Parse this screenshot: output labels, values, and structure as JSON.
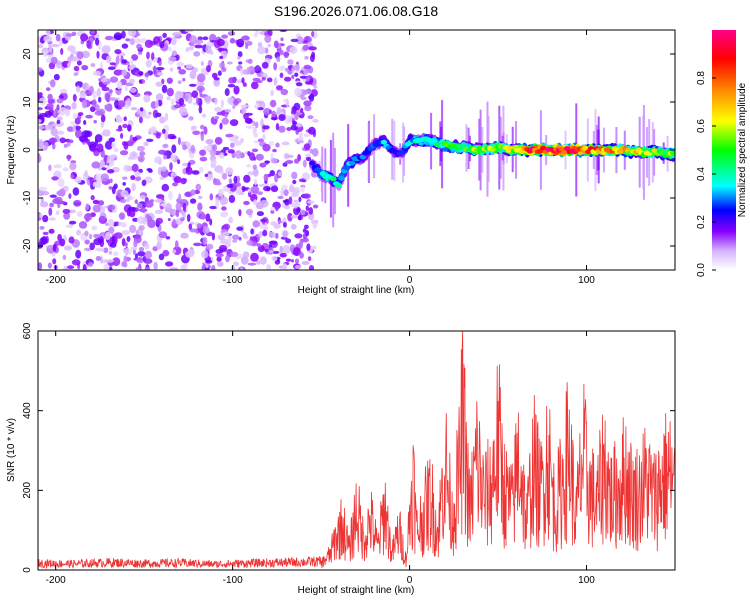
{
  "chart_data": [
    {
      "type": "heatmap",
      "title": "S196.2026.071.06.08.G18",
      "xlabel": "Height of straight line (km)",
      "ylabel": "Frequency (Hz)",
      "xlim": [
        -210,
        150
      ],
      "ylim": [
        -25,
        25
      ],
      "x_ticks": [
        -200,
        -100,
        0,
        100
      ],
      "y_ticks": [
        -20,
        -10,
        0,
        10,
        20
      ],
      "colorbar": {
        "label": "Normalized spectral amplitude",
        "range": [
          0,
          1
        ],
        "ticks": [
          0.0,
          0.2,
          0.4,
          0.6,
          0.8
        ],
        "tick_labels": [
          "0.0",
          "0.2",
          "0.4",
          "0.6",
          "0.8"
        ],
        "colormap": "rainbow (white, violet, blue, cyan, green, yellow, orange, red, pink)"
      },
      "regions": [
        {
          "x_range": [
            -210,
            -53
          ],
          "description": "noise",
          "peak_frequency_hz": null,
          "max_amplitude": 0.15
        },
        {
          "x_range": [
            -53,
            150
          ],
          "description": "signal",
          "max_amplitude": 0.95
        }
      ],
      "signal_track": {
        "x": [
          -55,
          -50,
          -45,
          -40,
          -35,
          -30,
          -25,
          -20,
          -15,
          -10,
          -5,
          0,
          10,
          20,
          30,
          40,
          50,
          60,
          70,
          80,
          90,
          100,
          110,
          120,
          130,
          140,
          150
        ],
        "frequency": [
          -3,
          -5,
          -6,
          -7,
          -3,
          -2,
          -1,
          1,
          2,
          0,
          -1,
          2,
          2,
          1,
          0.5,
          0,
          0.5,
          0,
          0,
          0,
          0,
          0,
          0,
          0,
          -0.5,
          -0.5,
          -1
        ],
        "amplitude": [
          0.2,
          0.35,
          0.4,
          0.35,
          0.3,
          0.3,
          0.25,
          0.25,
          0.3,
          0.25,
          0.2,
          0.35,
          0.4,
          0.45,
          0.5,
          0.55,
          0.55,
          0.6,
          0.85,
          0.9,
          0.9,
          0.8,
          0.7,
          0.65,
          0.6,
          0.55,
          0.5
        ]
      },
      "grid": false
    },
    {
      "type": "line",
      "xlabel": "Height of straight line (km)",
      "ylabel": "SNR (10 * v/v)",
      "xlim": [
        -210,
        150
      ],
      "ylim": [
        0,
        600
      ],
      "x_ticks": [
        -200,
        -100,
        0,
        100
      ],
      "y_ticks": [
        0,
        200,
        400,
        600
      ],
      "color": "#ee3333",
      "grid": false,
      "series": [
        {
          "x": [
            -210,
            -190,
            -170,
            -150,
            -130,
            -110,
            -90,
            -70,
            -50,
            -45,
            -42,
            -38,
            -34,
            -30,
            -26,
            -22,
            -18,
            -14,
            -10,
            -6,
            -2,
            2,
            4,
            8,
            12,
            16,
            20,
            24,
            28,
            30,
            34,
            38,
            42,
            46,
            50,
            54,
            58,
            62,
            66,
            70,
            74,
            78,
            82,
            86,
            90,
            94,
            98,
            102,
            106,
            110,
            114,
            118,
            122,
            126,
            130,
            134,
            138,
            142,
            146,
            150
          ],
          "y": [
            20,
            18,
            22,
            19,
            21,
            17,
            20,
            22,
            25,
            60,
            120,
            180,
            80,
            240,
            120,
            200,
            90,
            250,
            60,
            160,
            40,
            370,
            150,
            220,
            290,
            140,
            430,
            200,
            380,
            600,
            220,
            450,
            280,
            320,
            520,
            300,
            250,
            470,
            180,
            420,
            300,
            470,
            240,
            330,
            480,
            200,
            450,
            310,
            260,
            420,
            280,
            320,
            380,
            290,
            300,
            360,
            280,
            340,
            390,
            320
          ]
        }
      ]
    }
  ]
}
